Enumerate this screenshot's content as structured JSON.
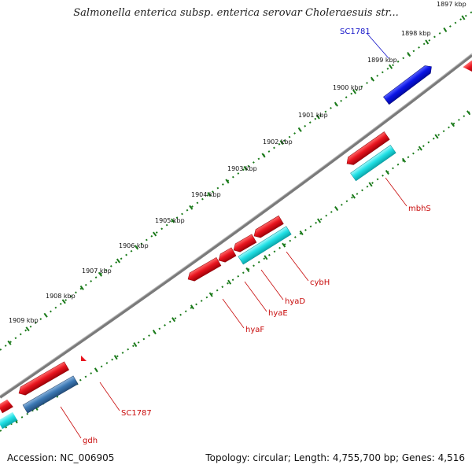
{
  "title": "Salmonella enterica subsp. enterica serovar Choleraesuis str...",
  "footer": {
    "accession": "Accession: NC_006905",
    "summary": "Topology: circular; Length: 4,755,700 bp; Genes: 4,516"
  },
  "colors": {
    "backbone": "#8c8c8c",
    "tick": "#1a7a1a",
    "gene_red": "#e8141e",
    "gene_cyan": "#22e1e6",
    "gene_blue": "#0a14e6",
    "gene_steel": "#3c78b4",
    "label_red": "#c80a0a",
    "label_blue": "#1414c8"
  },
  "tick_labels": [
    "1897 kbp",
    "1898 kbp",
    "1899 kbp",
    "1900 kbp",
    "1901 kbp",
    "1902 kbp",
    "1903 kbp",
    "1904 kbp",
    "1905 kbp",
    "1906 kbp",
    "1907 kbp",
    "1908 kbp",
    "1909 kbp"
  ],
  "gene_labels": [
    "SC1781",
    "mbhS",
    "cybH",
    "hyaD",
    "hyaE",
    "hyaF",
    "SC1787",
    "gdh"
  ]
}
